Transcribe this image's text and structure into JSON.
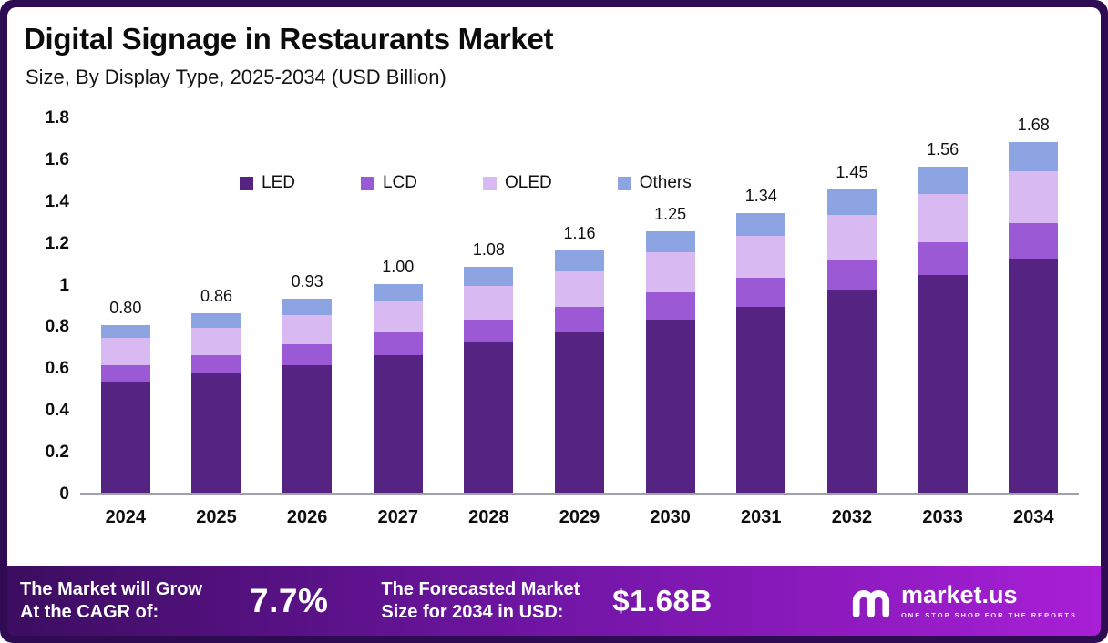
{
  "header": {
    "title": "Digital Signage in Restaurants Market",
    "subtitle": "Size, By Display Type, 2025-2034 (USD Billion)"
  },
  "chart_data": {
    "type": "bar",
    "stacked": true,
    "title": "Digital Signage in Restaurants Market Size, By Display Type, 2025-2034 (USD Billion)",
    "categories": [
      "2024",
      "2025",
      "2026",
      "2027",
      "2028",
      "2029",
      "2030",
      "2031",
      "2032",
      "2033",
      "2034"
    ],
    "series": [
      {
        "name": "LED",
        "color": "#552483",
        "values": [
          0.53,
          0.57,
          0.61,
          0.66,
          0.72,
          0.77,
          0.83,
          0.89,
          0.97,
          1.04,
          1.12
        ]
      },
      {
        "name": "LCD",
        "color": "#9b59d6",
        "values": [
          0.08,
          0.09,
          0.1,
          0.11,
          0.11,
          0.12,
          0.13,
          0.14,
          0.14,
          0.16,
          0.17
        ]
      },
      {
        "name": "OLED",
        "color": "#d9b9f2",
        "values": [
          0.13,
          0.13,
          0.14,
          0.15,
          0.16,
          0.17,
          0.19,
          0.2,
          0.22,
          0.23,
          0.25
        ]
      },
      {
        "name": "Others",
        "color": "#8ca4e2",
        "values": [
          0.06,
          0.07,
          0.08,
          0.08,
          0.09,
          0.1,
          0.1,
          0.11,
          0.12,
          0.13,
          0.14
        ]
      }
    ],
    "totals": [
      0.8,
      0.86,
      0.93,
      1.0,
      1.08,
      1.16,
      1.25,
      1.34,
      1.45,
      1.56,
      1.68
    ],
    "totals_display": [
      "0.80",
      "0.86",
      "0.93",
      "1.00",
      "1.08",
      "1.16",
      "1.25",
      "1.34",
      "1.45",
      "1.56",
      "1.68"
    ],
    "ylim": [
      0,
      1.8
    ],
    "yticks": [
      0,
      0.2,
      0.4,
      0.6,
      0.8,
      1,
      1.2,
      1.4,
      1.6,
      1.8
    ],
    "ytick_labels": [
      "0",
      "0.2",
      "0.4",
      "0.6",
      "0.8",
      "1",
      "1.2",
      "1.4",
      "1.6",
      "1.8"
    ],
    "xlabel": "",
    "ylabel": "",
    "grid": false,
    "legend_position": "top-inside"
  },
  "footer": {
    "cagr_label_line1": "The Market will Grow",
    "cagr_label_line2": "At the CAGR of:",
    "cagr_value": "7.7%",
    "forecast_label_line1": "The Forecasted Market",
    "forecast_label_line2": "Size for 2034 in USD:",
    "forecast_value": "$1.68B",
    "brand_name": "market.us",
    "brand_tagline": "ONE STOP SHOP FOR THE REPORTS"
  },
  "colors": {
    "frame": "#2e0b52",
    "footer_gradient_start": "#3c0d60",
    "footer_gradient_end": "#a81fd6",
    "baseline": "#a0a0aa"
  },
  "icons": {
    "brand_logo": "market-us-logo-icon"
  }
}
